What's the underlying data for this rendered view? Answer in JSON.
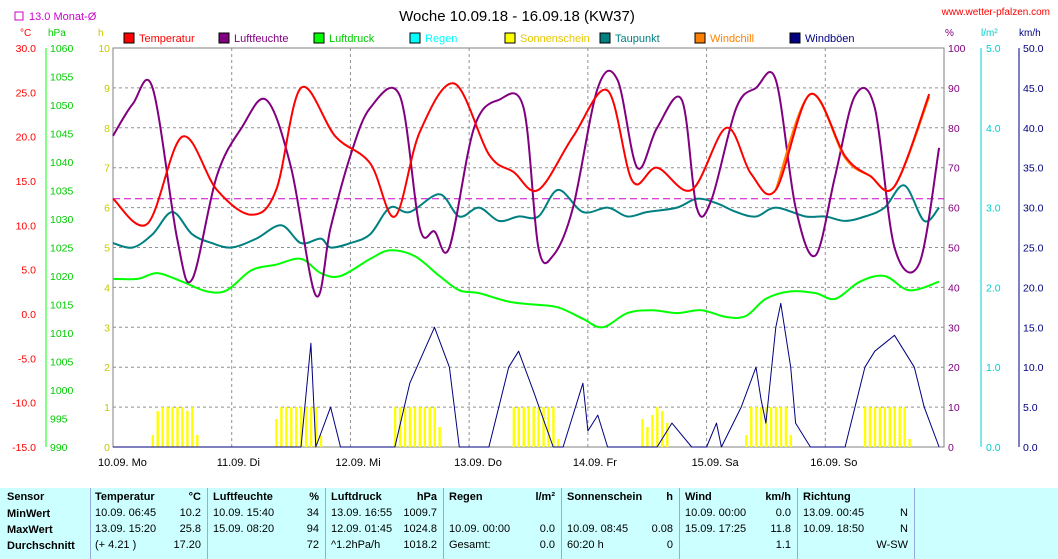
{
  "title": "Woche 10.09.18 - 16.09.18 (KW37)",
  "source": "www.wetter-pfalzen.com",
  "month_avg_label": "13.0 Monat-Ø",
  "colors": {
    "Temperatur": "#ff0000",
    "Luftfeuchte": "#800080",
    "Luftdruck": "#00ff00",
    "Regen": "#00ffff",
    "Sonnenschein": "#ffff00",
    "Taupunkt": "#008080",
    "Windchill": "#ff8000",
    "Windböen": "#000080",
    "Monat": "#cc00cc"
  },
  "chart_data": {
    "type": "line",
    "title": "Woche 10.09.18 - 16.09.18 (KW37)",
    "x_day_labels": [
      "10.09. Mo",
      "11.09. Di",
      "12.09. Mi",
      "13.09. Do",
      "14.09. Fr",
      "15.09. Sa",
      "16.09. So"
    ],
    "x_unit": "hours since 10.09. 00:00",
    "legend": [
      "Temperatur",
      "Luftfeuchte",
      "Luftdruck",
      "Regen",
      "Sonnenschein",
      "Taupunkt",
      "Windchill",
      "Windböen"
    ],
    "axes": {
      "temp": {
        "unit": "°C",
        "min": -15,
        "max": 30,
        "ticks": [
          "30.0",
          "25.0",
          "20.0",
          "15.0",
          "10.0",
          "5.0",
          "0.0",
          "-5.0",
          "-10.0",
          "-15.0"
        ]
      },
      "pressure": {
        "unit": "hPa",
        "min": 990,
        "max": 1060,
        "ticks": [
          "1060",
          "1055",
          "1050",
          "1045",
          "1040",
          "1035",
          "1030",
          "1025",
          "1020",
          "1015",
          "1010",
          "1005",
          "1000",
          "995",
          "990"
        ]
      },
      "sun": {
        "unit": "h",
        "min": 0,
        "max": 10,
        "ticks": [
          "10",
          "9",
          "8",
          "7",
          "6",
          "5",
          "4",
          "3",
          "2",
          "1",
          "0"
        ]
      },
      "humidity": {
        "unit": "%",
        "min": 0,
        "max": 100,
        "ticks": [
          "100",
          "90",
          "80",
          "70",
          "60",
          "50",
          "40",
          "30",
          "20",
          "10",
          "0"
        ]
      },
      "rain": {
        "unit": "l/m²",
        "min": 0,
        "max": 5,
        "ticks": [
          "5.0",
          "4.0",
          "3.0",
          "2.0",
          "1.0",
          "0.0"
        ]
      },
      "wind": {
        "unit": "km/h",
        "min": 0,
        "max": 50,
        "ticks": [
          "50.0",
          "45.0",
          "40.0",
          "35.0",
          "30.0",
          "25.0",
          "20.0",
          "15.0",
          "10.0",
          "5.0",
          "0.0"
        ]
      }
    },
    "month_avg_temp": 13.0,
    "series": [
      {
        "name": "Temperatur",
        "axis": "temp",
        "x": [
          0,
          7,
          14,
          21,
          28,
          33,
          38,
          45,
          52,
          57,
          62,
          69,
          76,
          81,
          86,
          93,
          100,
          105,
          110,
          117,
          124,
          129,
          134,
          141,
          148,
          153,
          158,
          165
        ],
        "y": [
          13,
          10.2,
          20,
          14,
          11.2,
          14,
          25.5,
          20,
          17,
          11,
          20.5,
          26,
          18,
          16,
          14,
          20,
          25.2,
          15,
          16.5,
          14,
          21,
          15.8,
          14,
          24.8,
          17.8,
          15.6,
          14.4,
          24.8
        ]
      },
      {
        "name": "Luftfeuchte",
        "axis": "humidity",
        "x": [
          0,
          4,
          8,
          13,
          16,
          21,
          26,
          31,
          36,
          41,
          44,
          48,
          52,
          58,
          62,
          65,
          68,
          73,
          78,
          83,
          86,
          89,
          93,
          98,
          102,
          106,
          110,
          115,
          118,
          121,
          126,
          130,
          134,
          138,
          142,
          146,
          150,
          154,
          158,
          163,
          167
        ],
        "y": [
          78,
          86,
          90,
          52,
          42,
          68,
          80,
          87,
          70,
          38,
          55,
          73,
          85,
          88,
          55,
          54,
          50,
          80,
          87,
          85,
          50,
          48,
          60,
          90,
          92,
          70,
          80,
          87,
          60,
          62,
          85,
          90,
          92,
          60,
          48,
          68,
          88,
          85,
          50,
          46,
          75
        ]
      },
      {
        "name": "Luftdruck",
        "axis": "pressure",
        "x": [
          0,
          5,
          9,
          14,
          19,
          23,
          28,
          33,
          38,
          42,
          46,
          52,
          56,
          61,
          66,
          70,
          74,
          80,
          85,
          90,
          95,
          99,
          104,
          109,
          114,
          119,
          124,
          128,
          132,
          137,
          142,
          146,
          151,
          156,
          161,
          167
        ],
        "y": [
          1019.5,
          1019.5,
          1020.5,
          1019.0,
          1017.3,
          1017.5,
          1021.0,
          1022.0,
          1023.0,
          1020.5,
          1020.0,
          1023.0,
          1024.5,
          1023.5,
          1020.0,
          1017.5,
          1017.0,
          1015.5,
          1015.0,
          1014.5,
          1012.5,
          1011.0,
          1013.5,
          1014.0,
          1013.5,
          1014.0,
          1012.8,
          1013.0,
          1016.0,
          1017.3,
          1017.0,
          1016.0,
          1019.0,
          1020.0,
          1017.5,
          1019.0
        ]
      },
      {
        "name": "Taupunkt",
        "axis": "temp",
        "x": [
          0,
          4,
          8,
          12,
          16,
          20,
          24,
          29,
          34,
          38,
          42,
          44,
          48,
          52,
          56,
          60,
          66,
          70,
          74,
          78,
          82,
          86,
          90,
          95,
          100,
          104,
          108,
          114,
          118,
          122,
          126,
          130,
          134,
          140,
          144,
          148,
          152,
          156,
          160,
          164,
          167
        ],
        "y": [
          8.0,
          7.5,
          9.0,
          11.5,
          9.0,
          8.0,
          7.5,
          8.5,
          10.0,
          8.0,
          8.5,
          7.5,
          8.0,
          9.0,
          12.0,
          11.5,
          13.5,
          11.0,
          12.0,
          10.5,
          11.0,
          11.0,
          14.0,
          11.5,
          12.0,
          11.0,
          11.5,
          12.0,
          13.0,
          12.5,
          11.5,
          11.0,
          12.0,
          11.0,
          11.0,
          10.5,
          11.0,
          12.0,
          14.5,
          10.5,
          12.0
        ]
      },
      {
        "name": "Windchill",
        "axis": "temp",
        "x": [
          134,
          141,
          148,
          153,
          158,
          165
        ],
        "y": [
          14,
          24.8,
          17.6,
          15.6,
          14.4,
          24.5
        ]
      },
      {
        "name": "Windböen",
        "axis": "wind",
        "x": [
          0,
          38,
          40,
          41,
          44,
          46,
          48,
          49,
          57,
          60,
          65,
          68,
          70,
          76,
          78,
          80,
          82,
          85,
          89,
          91,
          93,
          95,
          96,
          98,
          100,
          102,
          104,
          108,
          110,
          113,
          117,
          120,
          122,
          123,
          127,
          130,
          131,
          132,
          134,
          135,
          137,
          138,
          141,
          144,
          146,
          148,
          150,
          152,
          154,
          158,
          160,
          162,
          164,
          167
        ],
        "y": [
          0,
          0,
          13,
          0,
          5,
          0,
          0,
          0,
          0,
          8,
          15,
          10,
          0,
          0,
          5,
          10,
          12,
          7,
          0,
          0,
          4,
          8,
          2,
          4,
          0,
          0,
          0,
          0,
          0,
          3,
          0,
          0,
          3,
          0,
          5,
          10,
          6,
          3,
          15,
          18,
          10,
          3,
          0,
          0,
          0,
          0,
          5,
          10,
          12,
          14,
          12,
          10,
          5,
          0
        ]
      }
    ],
    "sunshine_bars": {
      "axis": "sun",
      "days": [
        {
          "x": [
            8,
            9,
            10,
            11,
            12,
            13,
            14,
            15,
            16,
            17
          ],
          "y": [
            0.3,
            0.9,
            1,
            1,
            1,
            1,
            1,
            0.9,
            1,
            0.3
          ]
        },
        {
          "x": [
            33,
            34,
            35,
            36,
            37,
            38,
            39,
            40,
            41,
            42
          ],
          "y": [
            0.7,
            1,
            1,
            1,
            1,
            1,
            1,
            1,
            1,
            0.3
          ]
        },
        {
          "x": [
            57,
            58,
            59,
            60,
            61,
            62,
            63,
            64,
            65,
            66
          ],
          "y": [
            1,
            1,
            1,
            1,
            1,
            1,
            1,
            1,
            1,
            0.5
          ]
        },
        {
          "x": [
            81,
            82,
            83,
            84,
            85,
            86,
            87,
            88,
            89,
            90
          ],
          "y": [
            1,
            1,
            1,
            1,
            1,
            1,
            1,
            1,
            1,
            0.2
          ]
        },
        {
          "x": [
            107,
            108,
            109,
            110,
            111,
            112
          ],
          "y": [
            0.7,
            0.5,
            0.8,
            1,
            0.9,
            0.6
          ]
        },
        {
          "x": [
            128,
            129,
            130,
            131,
            132,
            133,
            134,
            135,
            136,
            137
          ],
          "y": [
            0.3,
            1,
            1,
            1,
            1,
            1,
            1,
            1,
            1,
            0.3
          ]
        },
        {
          "x": [
            152,
            153,
            154,
            155,
            156,
            157,
            158,
            159,
            160,
            161
          ],
          "y": [
            1,
            1,
            1,
            1,
            1,
            1,
            1,
            1,
            1,
            0.2
          ]
        }
      ]
    }
  },
  "summary": {
    "row_labels": [
      "Sensor",
      "MinWert",
      "MaxWert",
      "Durchschnitt"
    ],
    "cols": [
      {
        "name": "Temperatur",
        "unit": "°C",
        "rows": [
          [
            "10.09.  06:45",
            "10.2"
          ],
          [
            "13.09.  15:20",
            "25.8"
          ],
          [
            "(+ 4.21 )",
            "17.20"
          ]
        ]
      },
      {
        "name": "Luftfeuchte",
        "unit": "%",
        "rows": [
          [
            "10.09.  15:40",
            "34"
          ],
          [
            "15.09.  08:20",
            "94"
          ],
          [
            "",
            "72"
          ]
        ]
      },
      {
        "name": "Luftdruck",
        "unit": "hPa",
        "rows": [
          [
            "13.09.  16:55",
            "1009.7"
          ],
          [
            "12.09.  01:45",
            "1024.8"
          ],
          [
            "^1.2hPa/h",
            "1018.2"
          ]
        ]
      },
      {
        "name": "Regen",
        "unit": "l/m²",
        "rows": [
          [
            "",
            ""
          ],
          [
            "10.09.  00:00",
            "0.0"
          ],
          [
            "Gesamt:",
            "0.0"
          ]
        ]
      },
      {
        "name": "Sonnenschein",
        "unit": "h",
        "rows": [
          [
            "",
            ""
          ],
          [
            "10.09.  08:45",
            "0.08"
          ],
          [
            "60:20 h",
            "0"
          ]
        ]
      },
      {
        "name": "Wind",
        "unit": "km/h",
        "rows": [
          [
            "10.09.  00:00",
            "0.0"
          ],
          [
            "15.09.  17:25",
            "11.8"
          ],
          [
            "",
            "1.1"
          ]
        ]
      },
      {
        "name": "Richtung",
        "unit": "",
        "rows": [
          [
            "13.09.  00:45",
            "N"
          ],
          [
            "10.09.  18:50",
            "N"
          ],
          [
            "",
            "W-SW"
          ]
        ]
      }
    ]
  }
}
